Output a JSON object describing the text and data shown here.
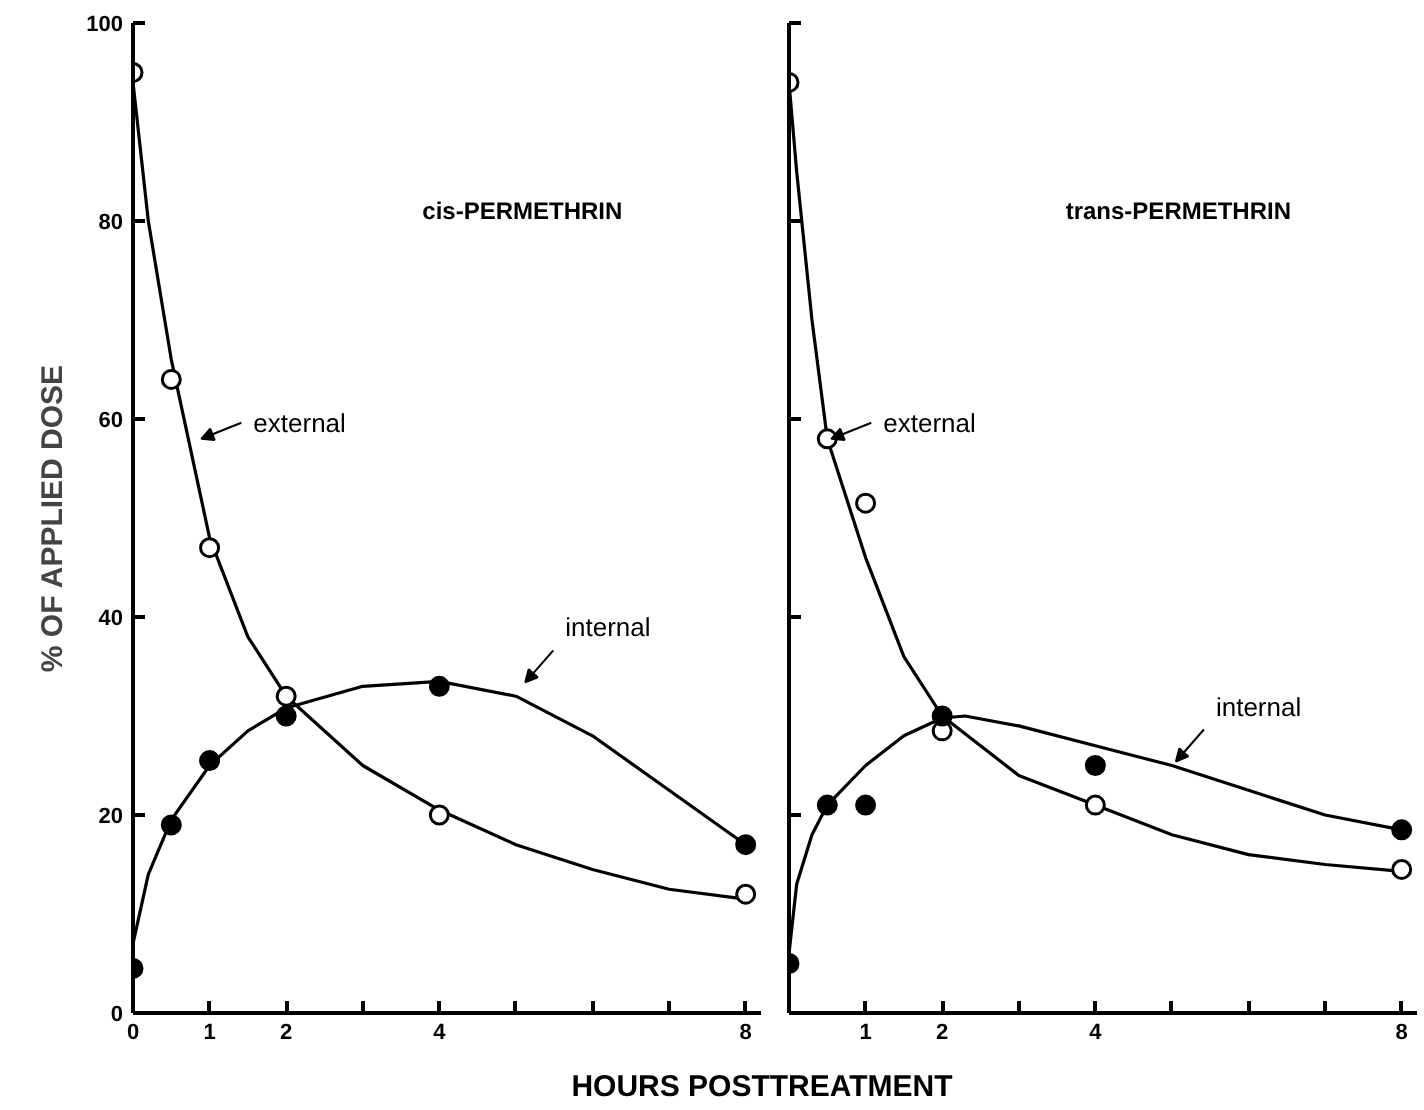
{
  "chart_data": [
    {
      "type": "scatter",
      "title": "cis-PERMETHRIN",
      "xlabel": "HOURS POSTTREATMENT",
      "ylabel": "% OF APPLIED DOSE",
      "xlim": [
        0,
        8.2
      ],
      "ylim": [
        0,
        100
      ],
      "xticks": [
        0,
        1,
        2,
        {
          "value": 3,
          "label": null
        },
        4,
        {
          "value": 5,
          "label": null
        },
        {
          "value": 6,
          "label": null
        },
        {
          "value": 7,
          "label": null
        },
        8
      ],
      "yticks": [
        0,
        20,
        40,
        60,
        80,
        100
      ],
      "grid": false,
      "series": [
        {
          "type": "line",
          "marker": "none",
          "color": "#000000",
          "x": [
            0,
            0.2,
            0.5,
            1,
            1.5,
            2,
            3,
            4,
            5,
            6,
            7,
            8
          ],
          "values": [
            94,
            80,
            66,
            48,
            38,
            32,
            25,
            20.5,
            17,
            14.5,
            12.5,
            11.5
          ]
        },
        {
          "type": "line",
          "marker": "none",
          "color": "#000000",
          "x": [
            0,
            0.2,
            0.5,
            1,
            1.5,
            2,
            3,
            4,
            5,
            6,
            7,
            8
          ],
          "values": [
            7,
            14,
            19.5,
            25,
            28.5,
            30.8,
            33,
            33.5,
            32,
            28,
            22.5,
            17
          ]
        },
        {
          "type": "scatter",
          "marker": "circle",
          "color": "#ffffff",
          "x": [
            0,
            0.5,
            1,
            2,
            4,
            8
          ],
          "values": [
            95,
            64,
            47,
            32,
            20,
            12
          ]
        },
        {
          "type": "scatter",
          "marker": "circle",
          "color": "#000000",
          "x": [
            0,
            0.5,
            1,
            2,
            4,
            8
          ],
          "values": [
            4.5,
            19,
            25.5,
            30,
            33,
            17
          ]
        }
      ],
      "annotations": [
        {
          "text": "external",
          "x": 0.84,
          "y": 58
        },
        {
          "text": "internal",
          "x": 5.07,
          "y": 33
        }
      ]
    },
    {
      "type": "scatter",
      "title": "trans-PERMETHRIN",
      "tick_labels": "x",
      "xlim": [
        0,
        8.2
      ],
      "ylim": [
        0,
        100
      ],
      "xticks": [
        {
          "value": 0,
          "label": null
        },
        1,
        2,
        {
          "value": 3,
          "label": null
        },
        4,
        {
          "value": 5,
          "label": null
        },
        {
          "value": 6,
          "label": null
        },
        {
          "value": 7,
          "label": null
        },
        8
      ],
      "yticks": [
        0,
        20,
        40,
        60,
        80,
        100
      ],
      "grid": false,
      "series": [
        {
          "type": "line",
          "marker": "none",
          "color": "#000000",
          "x": [
            0,
            0.1,
            0.3,
            0.5,
            1,
            1.5,
            2,
            3,
            4,
            5,
            6,
            7,
            8
          ],
          "values": [
            94,
            85,
            70,
            58,
            46,
            36,
            30,
            24,
            21,
            18,
            16,
            15,
            14.3
          ]
        },
        {
          "type": "line",
          "marker": "none",
          "color": "#000000",
          "x": [
            0,
            0.1,
            0.3,
            0.5,
            1,
            1.5,
            2,
            2.3,
            3,
            4,
            5,
            6,
            7,
            8
          ],
          "values": [
            6,
            13,
            18,
            21,
            25,
            28,
            29.8,
            30,
            29,
            27,
            25,
            22.5,
            20,
            18.5
          ]
        },
        {
          "type": "scatter",
          "marker": "circle",
          "color": "#ffffff",
          "x": [
            0,
            0.5,
            1,
            2,
            4,
            8
          ],
          "values": [
            94,
            58,
            51.5,
            28.5,
            21,
            14.5
          ]
        },
        {
          "type": "scatter",
          "marker": "circle",
          "color": "#000000",
          "x": [
            0,
            0.5,
            1,
            2,
            4,
            8
          ],
          "values": [
            5,
            21,
            21,
            30,
            25,
            18.5
          ]
        }
      ],
      "annotations": [
        {
          "text": "external",
          "x": 0.5,
          "y": 58
        },
        {
          "text": "internal",
          "x": 5,
          "y": 25
        }
      ]
    }
  ]
}
